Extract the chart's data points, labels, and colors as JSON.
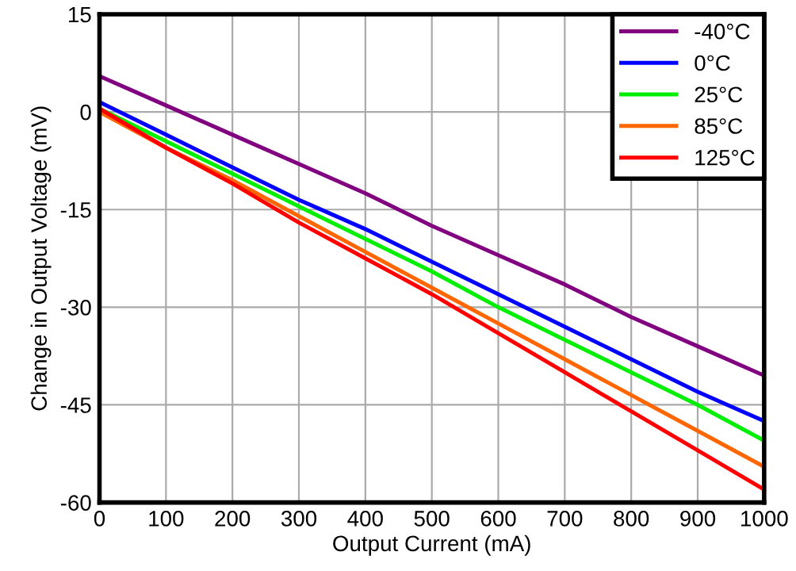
{
  "chart_data": {
    "type": "line",
    "xlabel": "Output Current (mA)",
    "ylabel": "Change in Output Voltage (mV)",
    "x": [
      0,
      100,
      200,
      300,
      400,
      500,
      600,
      700,
      800,
      900,
      1000
    ],
    "series": [
      {
        "name": "-40°C",
        "color": "#800080",
        "values": [
          5.5,
          1,
          -3.5,
          -8,
          -12.5,
          -17.5,
          -22,
          -26.5,
          -31.5,
          -36,
          -40.5
        ]
      },
      {
        "name": "0°C",
        "color": "#0000ff",
        "values": [
          1.5,
          -3.5,
          -8.5,
          -13.5,
          -18,
          -23,
          -28,
          -33,
          -38,
          -43,
          -47.5
        ]
      },
      {
        "name": "25°C",
        "color": "#00ee00",
        "values": [
          0.5,
          -4.5,
          -9.5,
          -14.5,
          -19.5,
          -24.5,
          -30,
          -35,
          -40,
          -45,
          -50.5
        ]
      },
      {
        "name": "85°C",
        "color": "#ff6600",
        "values": [
          0,
          -5.5,
          -10.5,
          -16,
          -21.5,
          -27,
          -32.5,
          -38,
          -43.5,
          -49,
          -54.5
        ]
      },
      {
        "name": "125°C",
        "color": "#ff0000",
        "values": [
          0.5,
          -5.5,
          -11,
          -17,
          -22.5,
          -28,
          -34,
          -40,
          -46,
          -52,
          -58
        ]
      }
    ],
    "xlim": [
      0,
      1000
    ],
    "xticks": [
      0,
      100,
      200,
      300,
      400,
      500,
      600,
      700,
      800,
      900,
      1000
    ],
    "ylim": [
      -60,
      15
    ],
    "yticks": [
      -60,
      -45,
      -30,
      -15,
      0,
      15
    ],
    "grid": true,
    "legend": "top right",
    "marker": "none",
    "line_style": "solid"
  }
}
